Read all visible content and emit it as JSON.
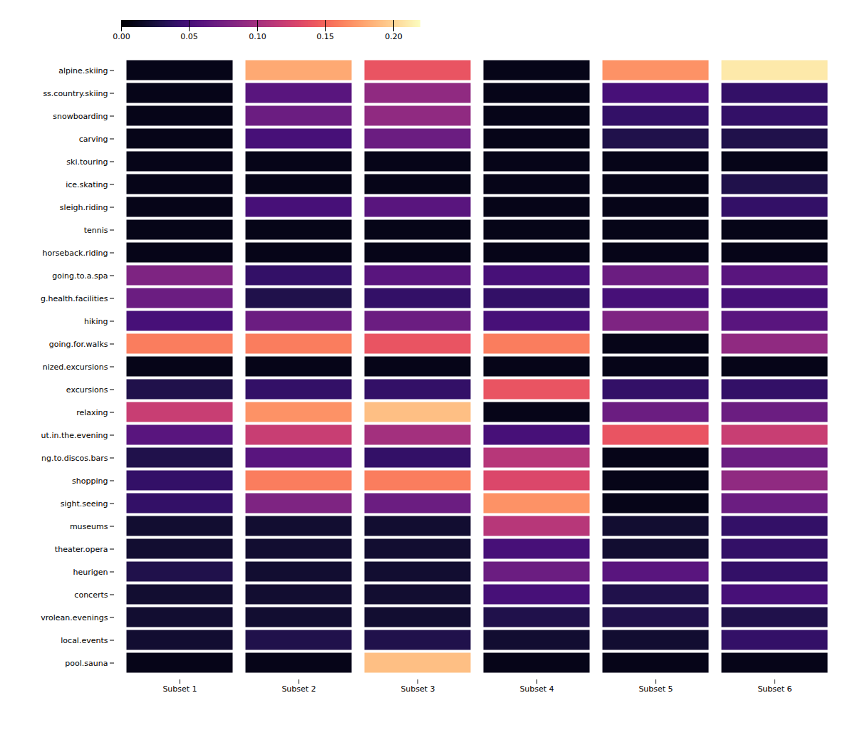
{
  "chart_data": {
    "type": "heatmap",
    "x": [
      "Subset 1",
      "Subset 2",
      "Subset 3",
      "Subset 4",
      "Subset 5",
      "Subset 6"
    ],
    "y": [
      "alpine.skiing",
      "ss.country.skiing",
      "snowboarding",
      "carving",
      "ski.touring",
      "ice.skating",
      "sleigh.riding",
      "tennis",
      "horseback.riding",
      "going.to.a.spa",
      "g.health.facilities",
      "hiking",
      "going.for.walks",
      "nized.excursions",
      "excursions",
      "relaxing",
      "ut.in.the.evening",
      "ng.to.discos.bars",
      "shopping",
      "sight.seeing",
      "museums",
      "theater.opera",
      "heurigen",
      "concerts",
      "vrolean.evenings",
      "local.events",
      "pool.sauna"
    ],
    "values": [
      [
        0.01,
        0.18,
        0.14,
        0.01,
        0.17,
        0.21
      ],
      [
        0.01,
        0.06,
        0.09,
        0.01,
        0.05,
        0.04
      ],
      [
        0.01,
        0.07,
        0.09,
        0.01,
        0.04,
        0.04
      ],
      [
        0.01,
        0.05,
        0.07,
        0.01,
        0.03,
        0.03
      ],
      [
        0.01,
        0.01,
        0.01,
        0.01,
        0.01,
        0.01
      ],
      [
        0.01,
        0.01,
        0.01,
        0.01,
        0.01,
        0.03
      ],
      [
        0.01,
        0.05,
        0.06,
        0.01,
        0.01,
        0.04
      ],
      [
        0.01,
        0.01,
        0.01,
        0.01,
        0.01,
        0.01
      ],
      [
        0.01,
        0.01,
        0.01,
        0.01,
        0.01,
        0.01
      ],
      [
        0.08,
        0.04,
        0.06,
        0.05,
        0.07,
        0.06
      ],
      [
        0.07,
        0.03,
        0.04,
        0.04,
        0.05,
        0.05
      ],
      [
        0.05,
        0.07,
        0.07,
        0.05,
        0.08,
        0.06
      ],
      [
        0.16,
        0.16,
        0.14,
        0.16,
        0.01,
        0.09
      ],
      [
        0.01,
        0.01,
        0.01,
        0.01,
        0.01,
        0.01
      ],
      [
        0.03,
        0.04,
        0.04,
        0.14,
        0.04,
        0.04
      ],
      [
        0.12,
        0.17,
        0.19,
        0.01,
        0.07,
        0.07
      ],
      [
        0.06,
        0.12,
        0.1,
        0.05,
        0.14,
        0.12
      ],
      [
        0.03,
        0.06,
        0.04,
        0.11,
        0.01,
        0.07
      ],
      [
        0.04,
        0.16,
        0.16,
        0.13,
        0.01,
        0.09
      ],
      [
        0.04,
        0.08,
        0.07,
        0.17,
        0.01,
        0.07
      ],
      [
        0.02,
        0.02,
        0.02,
        0.11,
        0.02,
        0.04
      ],
      [
        0.02,
        0.02,
        0.02,
        0.05,
        0.02,
        0.04
      ],
      [
        0.03,
        0.02,
        0.02,
        0.07,
        0.06,
        0.04
      ],
      [
        0.02,
        0.02,
        0.02,
        0.05,
        0.03,
        0.05
      ],
      [
        0.02,
        0.02,
        0.02,
        0.03,
        0.03,
        0.03
      ],
      [
        0.02,
        0.03,
        0.03,
        0.02,
        0.02,
        0.04
      ],
      [
        0.01,
        0.01,
        0.19,
        0.01,
        0.01,
        0.01
      ]
    ],
    "color": "magma",
    "colorbar_lim": [
      0.0,
      0.22
    ],
    "colorbar_ticks": [
      {
        "value": 0.0,
        "label": "0.00"
      },
      0.05,
      {
        "value": 0.1,
        "label": "0.10"
      },
      0.15,
      {
        "value": 0.2,
        "label": "0.20"
      }
    ]
  }
}
